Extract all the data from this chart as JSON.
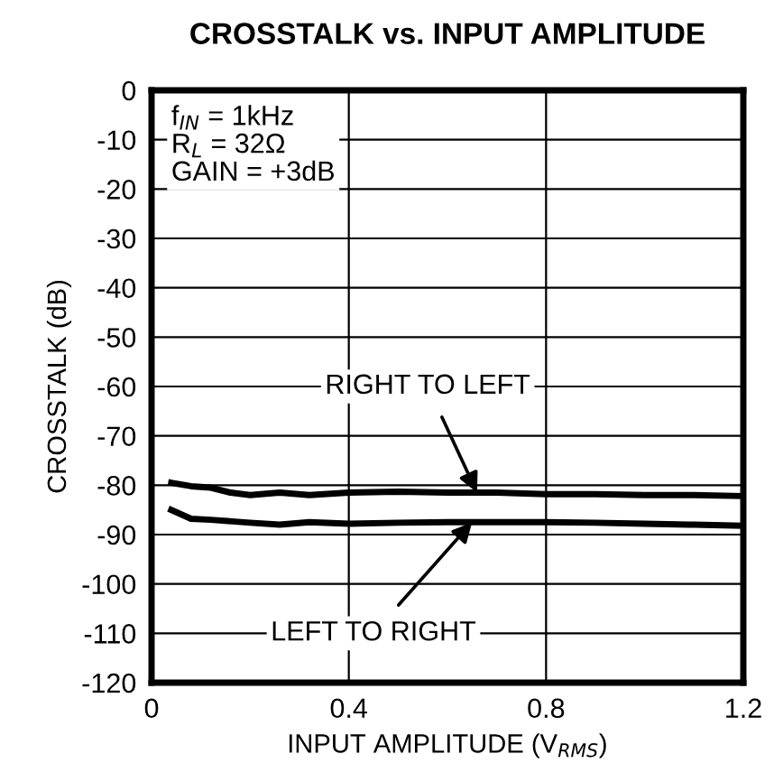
{
  "chart_data": {
    "type": "line",
    "title": "CROSSTALK vs. INPUT AMPLITUDE",
    "xlabel": "INPUT AMPLITUDE (V$_{RMS}$)",
    "ylabel": "CROSSTALK (dB)",
    "xlim": [
      0,
      1.2
    ],
    "ylim": [
      -120,
      0
    ],
    "xticks": [
      0,
      0.4,
      0.8,
      1.2
    ],
    "yticks": [
      0,
      -10,
      -20,
      -30,
      -40,
      -50,
      -60,
      -70,
      -80,
      -90,
      -100,
      -110,
      -120
    ],
    "grid": true,
    "line_style": "solid",
    "marker": "none",
    "series": [
      {
        "color": "#000000",
        "x": [
          0.04,
          0.08,
          0.12,
          0.16,
          0.2,
          0.26,
          0.32,
          0.4,
          0.5,
          0.6,
          0.7,
          0.8,
          0.9,
          1.0,
          1.1,
          1.2
        ],
        "values": [
          -79.5,
          -80.2,
          -80.5,
          -81.5,
          -82,
          -81.5,
          -82,
          -81.5,
          -81.3,
          -81.5,
          -81.5,
          -81.8,
          -81.8,
          -82,
          -82,
          -82.2
        ]
      },
      {
        "color": "#000000",
        "x": [
          0.04,
          0.08,
          0.12,
          0.2,
          0.26,
          0.32,
          0.4,
          0.5,
          0.6,
          0.7,
          0.8,
          0.9,
          1.0,
          1.1,
          1.2
        ],
        "values": [
          -85,
          -86.8,
          -87,
          -87.6,
          -88,
          -87.5,
          -87.8,
          -87.6,
          -87.5,
          -87.5,
          -87.5,
          -87.6,
          -87.8,
          -88,
          -88.2
        ]
      }
    ],
    "annotations": [
      {
        "text": "RIGHT TO LEFT",
        "x": 0.66,
        "y": -81.5
      },
      {
        "text": "LEFT TO RIGHT",
        "x": 0.65,
        "y": -87.5
      },
      "f$_{IN}$ = 1kHz\nR$_{L}$ = 32Ω\nGAIN = +3dB"
    ]
  }
}
